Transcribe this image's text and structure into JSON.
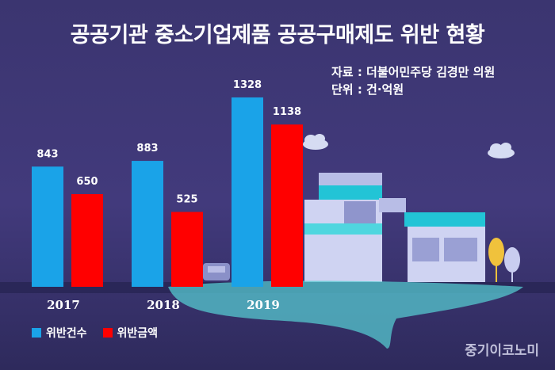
{
  "title": "공공기관 중소기업제품 공공구매제도 위반 현황",
  "source_line": "자료 : 더불어민주당 김경만 의원",
  "unit_line": "단위 : 건·억원",
  "watermark": "중기이코노미",
  "colors": {
    "series1": "#1aa3e8",
    "series2": "#ff0000"
  },
  "chart_data": {
    "type": "bar",
    "categories": [
      "2017",
      "2018",
      "2019"
    ],
    "series": [
      {
        "name": "위반건수",
        "values": [
          843,
          883,
          1328
        ]
      },
      {
        "name": "위반금액",
        "values": [
          650,
          525,
          1138
        ]
      }
    ],
    "title": "공공기관 중소기업제품 공공구매제도 위반 현황",
    "xlabel": "",
    "ylabel": "",
    "ylim": [
      0,
      1400
    ],
    "legend": "bottom-left",
    "grid": false
  }
}
